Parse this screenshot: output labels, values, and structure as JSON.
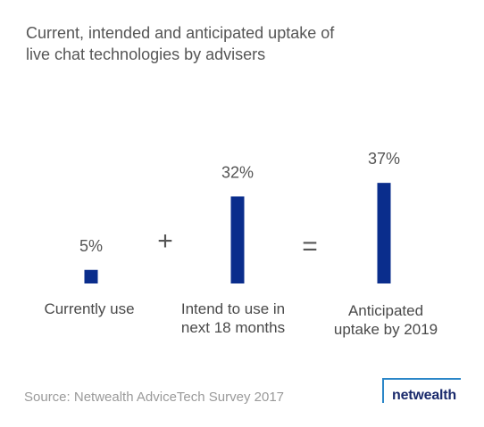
{
  "title_lines": [
    "Current, intended and anticipated uptake of",
    "live chat technologies by advisers"
  ],
  "operators": {
    "plus": "+",
    "equals": "="
  },
  "source": "Source: Netwealth AdviceTech Survey 2017",
  "logo": {
    "text": "netwealth"
  },
  "colors": {
    "bar": "#0a2d8c",
    "logo_accent": "#2a86c8",
    "logo_text": "#1a2a6c"
  },
  "chart_data": {
    "type": "bar",
    "title": "Current, intended and anticipated uptake of live chat technologies by advisers",
    "categories": [
      [
        "Currently use"
      ],
      [
        "Intend to use in",
        "next 18 months"
      ],
      [
        "Anticipated",
        "uptake by 2019"
      ]
    ],
    "values": [
      5,
      32,
      37
    ],
    "value_labels": [
      "5%",
      "32%",
      "37%"
    ],
    "unit": "%",
    "grid": false,
    "legend": "none"
  }
}
